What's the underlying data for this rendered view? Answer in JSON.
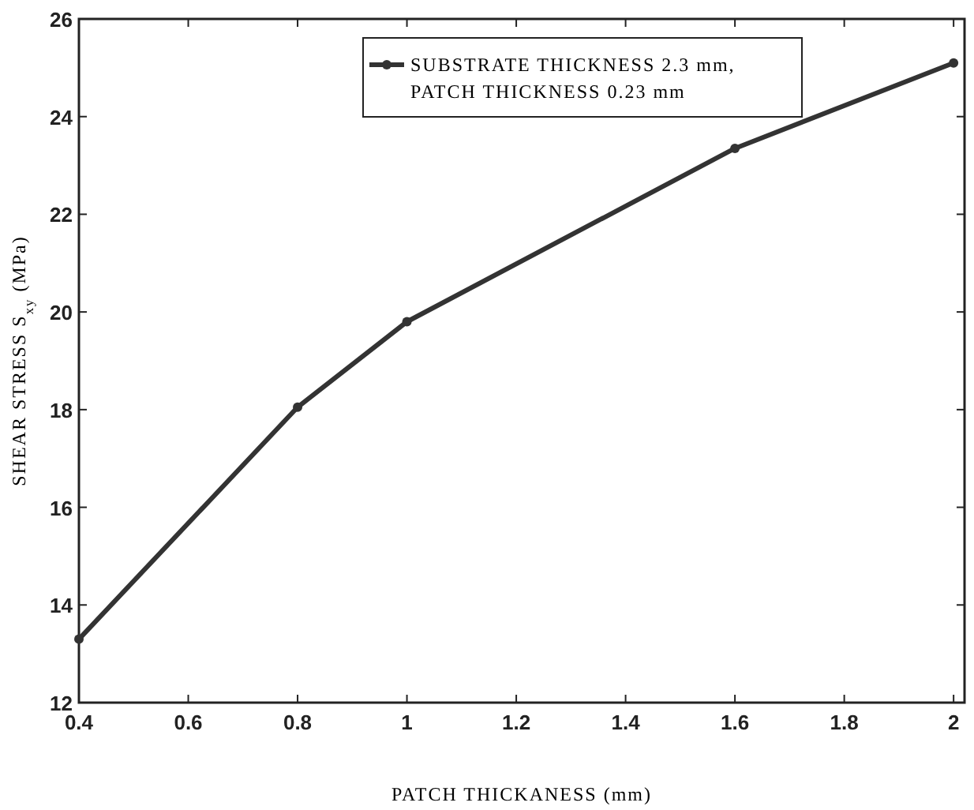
{
  "chart_data": {
    "type": "line",
    "xlabel": "PATCH THICKANESS (mm)",
    "ylabel": "SHEAR STRESS S$_{xy}$ (MPa)",
    "x": [
      0.4,
      0.8,
      1.0,
      1.6,
      2.0
    ],
    "series": [
      {
        "name": "SUBSTRATE THICKNESS 2.3 mm,\nPATCH THICKNESS 0.23 mm",
        "color": "#333333",
        "values": [
          13.3,
          18.05,
          19.8,
          23.35,
          25.1
        ]
      }
    ],
    "xlim": [
      0.4,
      2.02
    ],
    "xticks": [
      0.4,
      0.6,
      0.8,
      1,
      1.2,
      1.4,
      1.6,
      1.8,
      2
    ],
    "ylim": [
      12,
      26
    ],
    "yticks": [
      12,
      14,
      16,
      18,
      20,
      22,
      24,
      26
    ],
    "grid": false,
    "legend": "top right",
    "marker": "circle",
    "line_style": "solid"
  }
}
